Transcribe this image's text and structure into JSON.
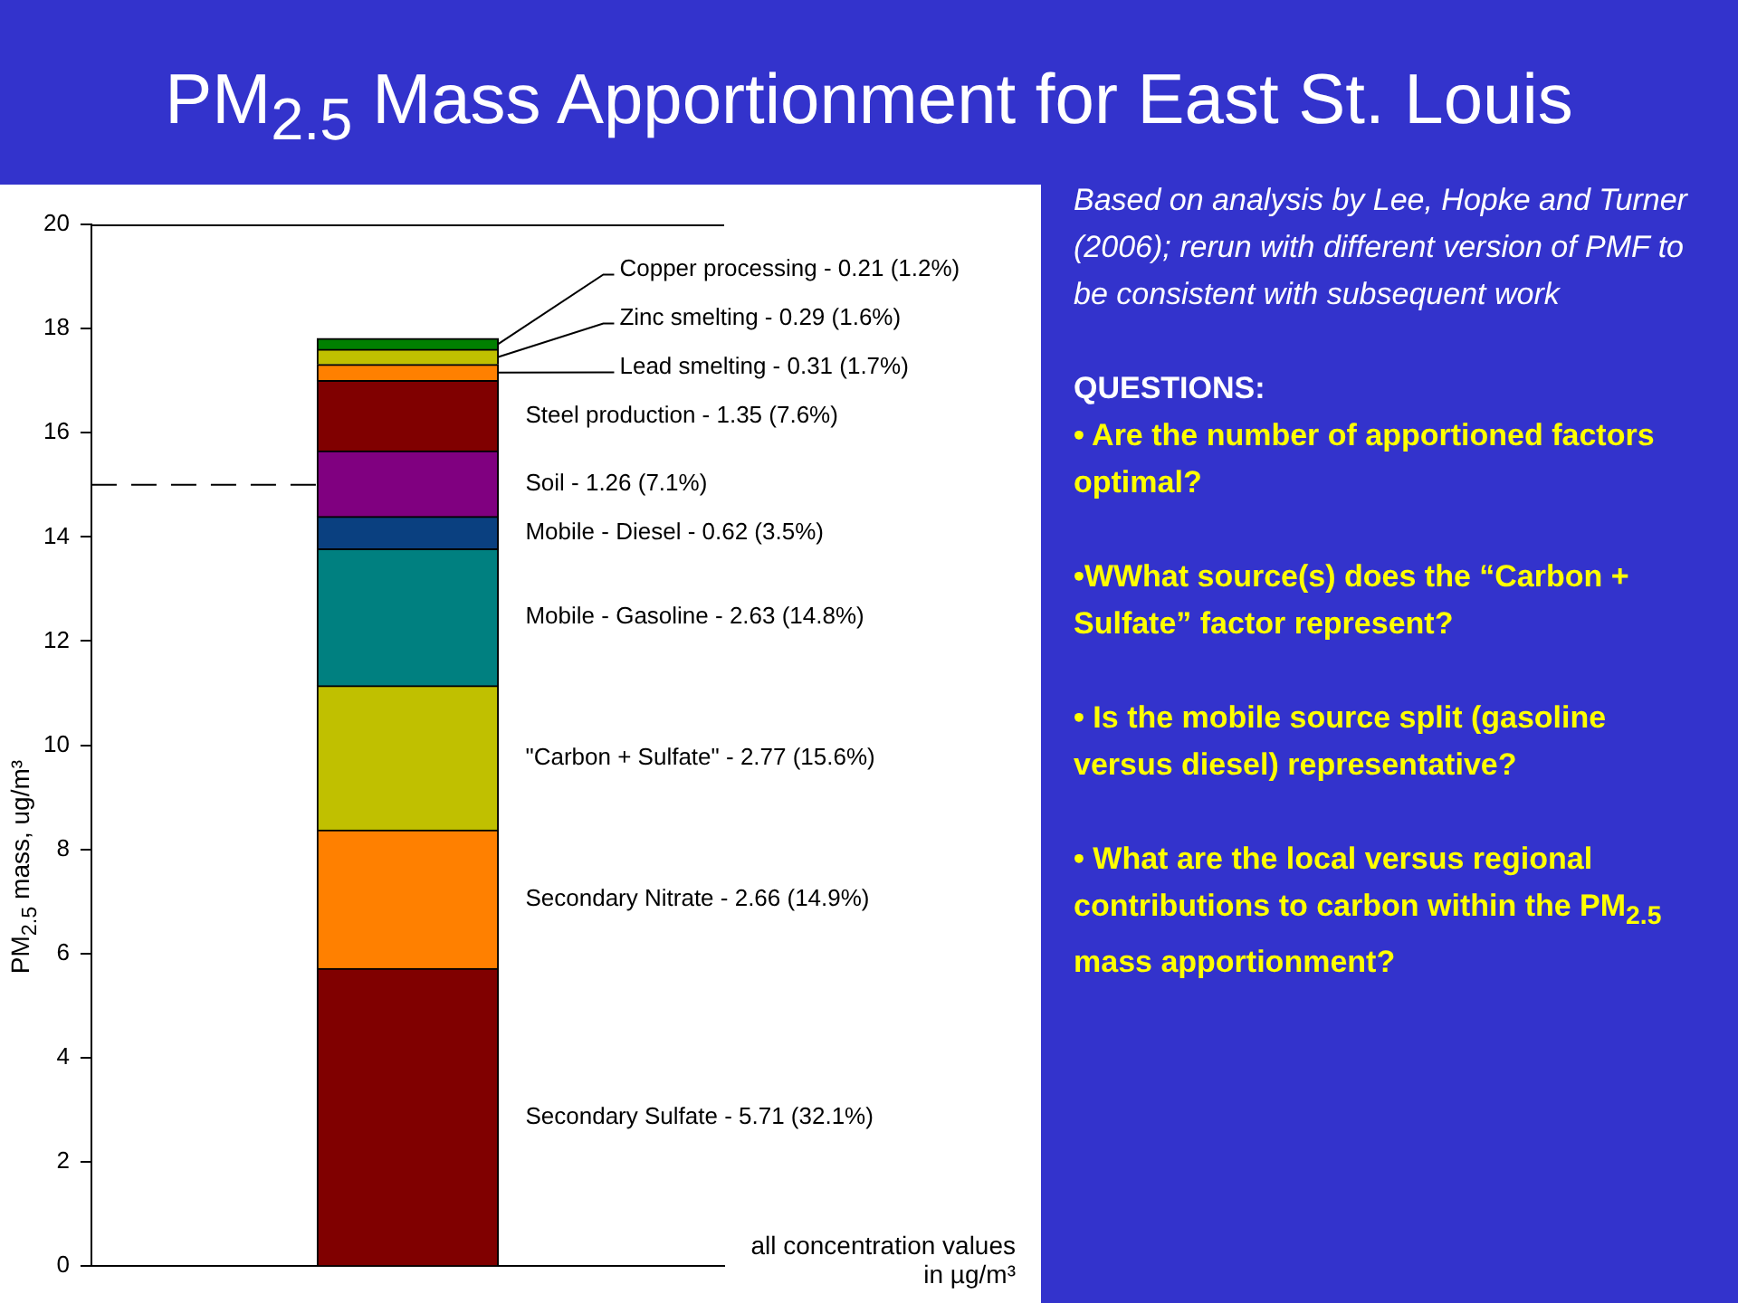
{
  "chart_data": {
    "type": "bar",
    "stacked": true,
    "title": "PM$_{2.5}$ Mass Apportionment for East St. Louis",
    "ylabel": "PM$_{2.5}$ mass, ug/m³",
    "categories": [
      null
    ],
    "series": [
      {
        "name": "Secondary Sulfate - 5.71 (32.1%)",
        "color": "#800000",
        "values": [
          5.71
        ]
      },
      {
        "name": "Secondary Nitrate - 2.66 (14.9%)",
        "color": "#ff8000",
        "values": [
          2.66
        ]
      },
      {
        "name": "\"Carbon + Sulfate\" - 2.77 (15.6%)",
        "color": "#c0c000",
        "values": [
          2.77
        ]
      },
      {
        "name": "Mobile - Gasoline - 2.63 (14.8%)",
        "color": "#008080",
        "values": [
          2.63
        ]
      },
      {
        "name": "Mobile - Diesel - 0.62 (3.5%)",
        "color": "#0a4080",
        "values": [
          0.62
        ]
      },
      {
        "name": "Soil - 1.26 (7.1%)",
        "color": "#800080",
        "values": [
          1.26
        ]
      },
      {
        "name": "Steel production - 1.35 (7.6%)",
        "color": "#800000",
        "values": [
          1.35
        ]
      },
      {
        "name": "Lead smelting - 0.31 (1.7%)",
        "color": "#ff8000",
        "values": [
          0.31
        ]
      },
      {
        "name": "Zinc smelting - 0.29 (1.6%)",
        "color": "#c0c000",
        "values": [
          0.29
        ]
      },
      {
        "name": "Copper processing - 0.21 (1.2%)",
        "color": "#008000",
        "values": [
          0.21
        ]
      }
    ],
    "ylim": [
      0,
      20
    ],
    "yticks": [
      0,
      2,
      4,
      6,
      8,
      10,
      12,
      14,
      16,
      18,
      20
    ],
    "grid": false,
    "legend": false,
    "ref_lines": [
      {
        "axis": "y",
        "value": 15,
        "line_style": "dashed",
        "color": "#000000"
      }
    ],
    "annotations": [
      "Based on analysis by Lee, Hopke and Turner (2006); rerun with different version of PMF to be consistent with subsequent work",
      "QUESTIONS:",
      "• Are the number of apportioned factors optimal?",
      "•WWhat source(s) does the “Carbon + Sulfate” factor represent?",
      "• Is the mobile source split (gasoline versus diesel) representative?",
      "• What are the local versus regional contributions to carbon within the PM$_{2.5}$ mass apportionment?",
      "all concentration values in µg/m³"
    ]
  }
}
